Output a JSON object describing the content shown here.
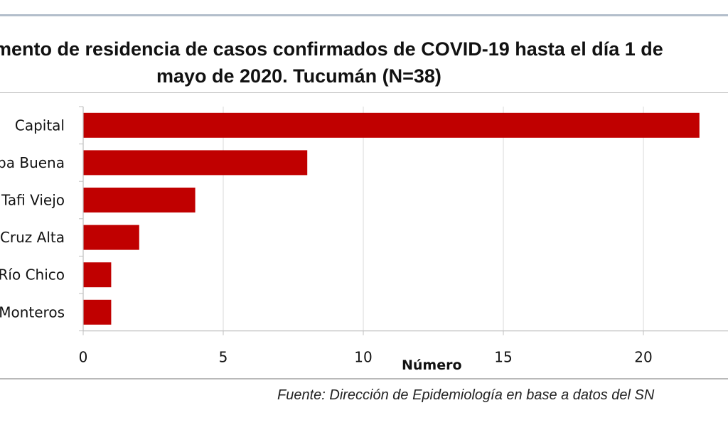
{
  "header": {
    "title_line1": "mento de residencia de casos confirmados de COVID-19 hasta el día 1 de",
    "title_line2": "mayo de 2020. Tucumán (N=38)"
  },
  "footer": {
    "source": "Fuente: Dirección de Epidemiología en base a datos del SN"
  },
  "chart_data": {
    "type": "bar",
    "orientation": "horizontal",
    "title": "mento de residencia de casos confirmados de COVID-19 hasta el día 1 de mayo de 2020. Tucumán (N=38)",
    "xlabel": "Número",
    "ylabel": "",
    "categories": [
      "Capital",
      "ba Buena",
      "Tafi Viejo",
      "Cruz Alta",
      "Río Chico",
      "Monteros"
    ],
    "values": [
      22,
      8,
      4,
      2,
      1,
      1
    ],
    "xlim": [
      0,
      22.5
    ],
    "xticks": [
      0,
      5,
      10,
      15,
      20
    ],
    "grid": true,
    "bar_color": "#c00000",
    "grid_color": "#d9d9d9"
  }
}
